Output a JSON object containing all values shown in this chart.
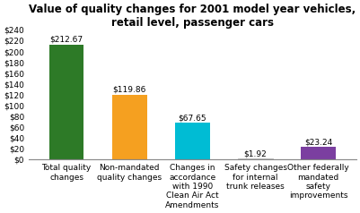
{
  "title": "Value of quality changes for 2001 model year vehicles,\nretail level, passenger cars",
  "categories": [
    "Total quality\nchanges",
    "Non-mandated\nquality changes",
    "Changes in\naccordance\nwith 1990\nClean Air Act\nAmendments",
    "Safety changes\nfor internal\ntrunk releases",
    "Other federally\nmandated\nsafety\nimprovements"
  ],
  "values": [
    212.67,
    119.86,
    67.65,
    1.92,
    23.24
  ],
  "bar_colors": [
    "#2d7a27",
    "#f5a020",
    "#00bcd4",
    "#ffffff",
    "#7b3fa0"
  ],
  "bar_edge_colors": [
    "none",
    "none",
    "none",
    "#aaaaaa",
    "none"
  ],
  "bar_labels": [
    "$212.67",
    "$119.86",
    "$67.65",
    "$1.92",
    "$23.24"
  ],
  "ylim": [
    0,
    240
  ],
  "yticks": [
    0,
    20,
    40,
    60,
    80,
    100,
    120,
    140,
    160,
    180,
    200,
    220,
    240
  ],
  "ytick_labels": [
    "$0",
    "$20",
    "$40",
    "$60",
    "$80",
    "$100",
    "$120",
    "$140",
    "$160",
    "$180",
    "$200",
    "$220",
    "$240"
  ],
  "background_color": "#ffffff",
  "title_fontsize": 8.5,
  "tick_fontsize": 6.5,
  "bar_label_fontsize": 6.5,
  "bar_width": 0.55
}
